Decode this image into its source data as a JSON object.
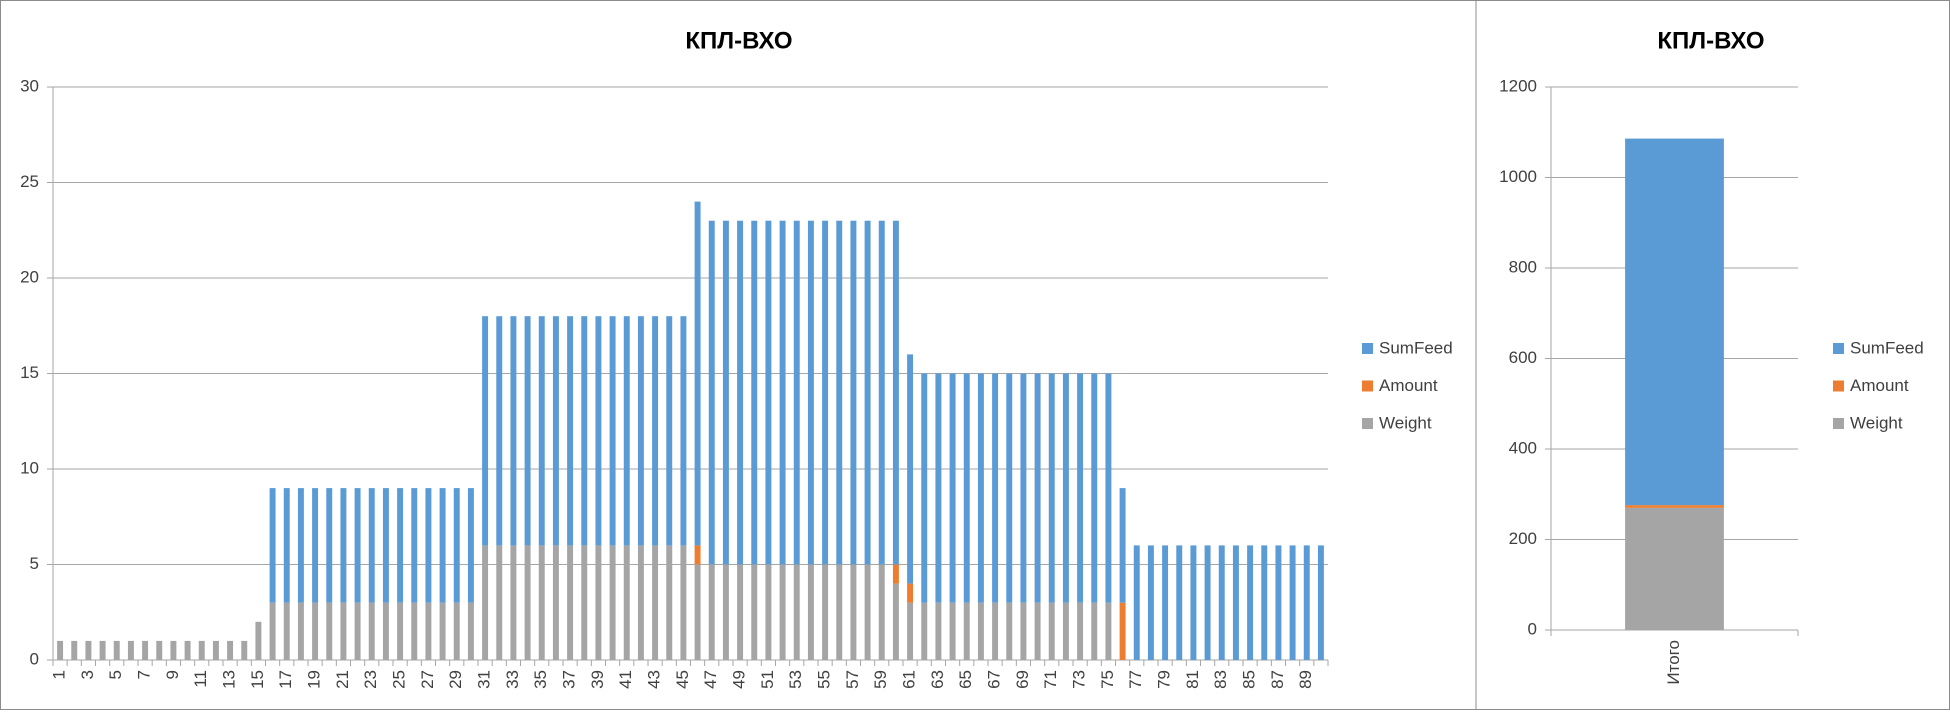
{
  "chart_data": [
    {
      "type": "stacked_bar",
      "title": "КПЛ-ВХО",
      "categories": [
        "1",
        null,
        "3",
        null,
        "5",
        null,
        "7",
        null,
        "9",
        null,
        "11",
        null,
        "13",
        null,
        "15",
        null,
        "17",
        null,
        "19",
        null,
        "21",
        null,
        "23",
        null,
        "25",
        null,
        "27",
        null,
        "29",
        null,
        "31",
        null,
        "33",
        null,
        "35",
        null,
        "37",
        null,
        "39",
        null,
        "41",
        null,
        "43",
        null,
        "45",
        null,
        "47",
        null,
        "49",
        null,
        "51",
        null,
        "53",
        null,
        "55",
        null,
        "57",
        null,
        "59",
        null,
        "61",
        null,
        "63",
        null,
        "65",
        null,
        "67",
        null,
        "69",
        null,
        "71",
        null,
        "73",
        null,
        "75",
        null,
        "77",
        null,
        "79",
        null,
        "81",
        null,
        "83",
        null,
        "85",
        null,
        "87",
        null,
        "89",
        null
      ],
      "series": [
        {
          "name": "Weight",
          "color": "#a5a5a5",
          "values": [
            1,
            1,
            1,
            1,
            1,
            1,
            1,
            1,
            1,
            1,
            1,
            1,
            1,
            1,
            2,
            3,
            3,
            3,
            3,
            3,
            3,
            3,
            3,
            3,
            3,
            3,
            3,
            3,
            3,
            3,
            6,
            6,
            6,
            6,
            6,
            6,
            6,
            6,
            6,
            6,
            6,
            6,
            6,
            6,
            6,
            5,
            5,
            5,
            5,
            5,
            5,
            5,
            5,
            5,
            5,
            5,
            5,
            5,
            5,
            4,
            3,
            3,
            3,
            3,
            3,
            3,
            3,
            3,
            3,
            3,
            3,
            3,
            3,
            3,
            3,
            0,
            0,
            0,
            0,
            0,
            0,
            0,
            0,
            0,
            0,
            0,
            0,
            0,
            0,
            0
          ]
        },
        {
          "name": "Amount",
          "color": "#ed7d31",
          "values": [
            0,
            0,
            0,
            0,
            0,
            0,
            0,
            0,
            0,
            0,
            0,
            0,
            0,
            0,
            0,
            0,
            0,
            0,
            0,
            0,
            0,
            0,
            0,
            0,
            0,
            0,
            0,
            0,
            0,
            0,
            0,
            0,
            0,
            0,
            0,
            0,
            0,
            0,
            0,
            0,
            0,
            0,
            0,
            0,
            0,
            1,
            0,
            0,
            0,
            0,
            0,
            0,
            0,
            0,
            0,
            0,
            0,
            0,
            0,
            1,
            1,
            0,
            0,
            0,
            0,
            0,
            0,
            0,
            0,
            0,
            0,
            0,
            0,
            0,
            0,
            3,
            0,
            0,
            0,
            0,
            0,
            0,
            0,
            0,
            0,
            0,
            0,
            0,
            0,
            0
          ]
        },
        {
          "name": "SumFeed",
          "color": "#5b9bd5",
          "values": [
            0,
            0,
            0,
            0,
            0,
            0,
            0,
            0,
            0,
            0,
            0,
            0,
            0,
            0,
            0,
            6,
            6,
            6,
            6,
            6,
            6,
            6,
            6,
            6,
            6,
            6,
            6,
            6,
            6,
            6,
            12,
            12,
            12,
            12,
            12,
            12,
            12,
            12,
            12,
            12,
            12,
            12,
            12,
            12,
            12,
            18,
            18,
            18,
            18,
            18,
            18,
            18,
            18,
            18,
            18,
            18,
            18,
            18,
            18,
            18,
            12,
            12,
            12,
            12,
            12,
            12,
            12,
            12,
            12,
            12,
            12,
            12,
            12,
            12,
            12,
            6,
            6,
            6,
            6,
            6,
            6,
            6,
            6,
            6,
            6,
            6,
            6,
            6,
            6,
            6
          ]
        }
      ],
      "ylim": [
        0,
        30
      ],
      "yticks": [
        0,
        5,
        10,
        15,
        20,
        25,
        30
      ],
      "grid": true,
      "legend": "right",
      "rotate_labels": true
    },
    {
      "type": "stacked_bar",
      "title": "КПЛ-ВХО",
      "categories": [
        "Итого"
      ],
      "series": [
        {
          "name": "Weight",
          "color": "#a5a5a5",
          "values": [
            270
          ]
        },
        {
          "name": "Amount",
          "color": "#ed7d31",
          "values": [
            6
          ]
        },
        {
          "name": "SumFeed",
          "color": "#5b9bd5",
          "values": [
            810
          ]
        }
      ],
      "ylim": [
        0,
        1200
      ],
      "yticks": [
        0,
        200,
        400,
        600,
        800,
        1000,
        1200
      ],
      "grid": true,
      "legend": "right",
      "rotate_labels": true
    }
  ]
}
